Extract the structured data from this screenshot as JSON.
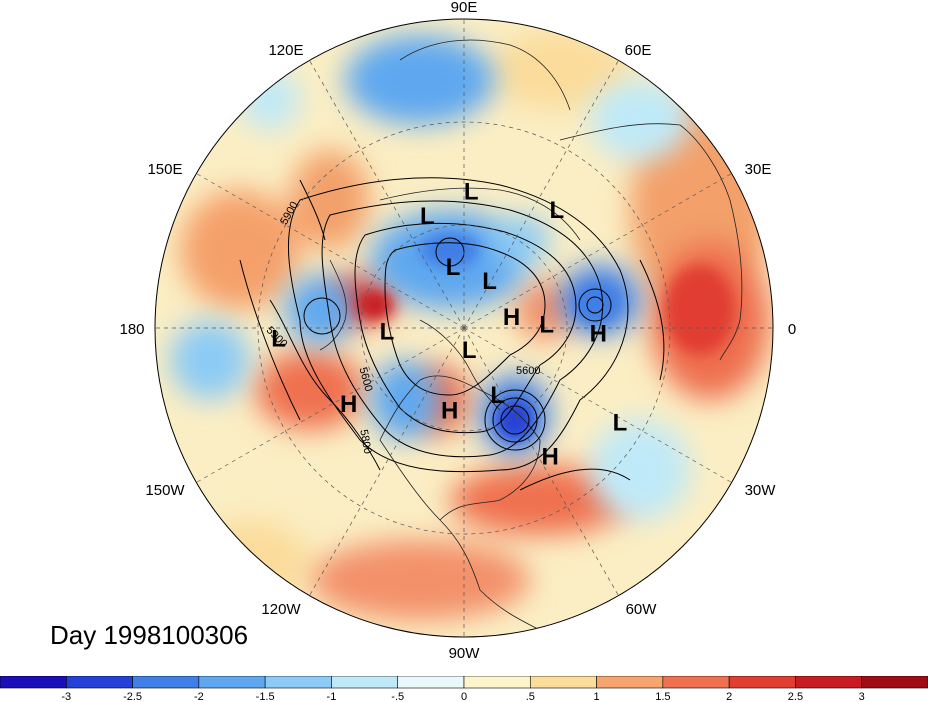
{
  "map": {
    "projection": "north-polar-stereographic",
    "day_label": "Day 1998100306",
    "longitude_labels": [
      "90E",
      "60E",
      "30E",
      "0",
      "30W",
      "60W",
      "90W",
      "120W",
      "150W",
      "180",
      "150E",
      "120E"
    ],
    "pressure_centers": [
      {
        "type": "L",
        "lon": 108,
        "lat": 48
      },
      {
        "type": "L",
        "lon": 87,
        "lat": 42
      },
      {
        "type": "L",
        "lon": 52,
        "lat": 38
      },
      {
        "type": "L",
        "lon": 100,
        "lat": 67
      },
      {
        "type": "L",
        "lon": 62,
        "lat": 70
      },
      {
        "type": "L",
        "lon": -76,
        "lat": 82
      },
      {
        "type": "H",
        "lon": 14,
        "lat": 72
      },
      {
        "type": "L",
        "lon": 3,
        "lat": 60
      },
      {
        "type": "H",
        "lon": -2,
        "lat": 43
      },
      {
        "type": "L",
        "lon": -178,
        "lat": 62
      },
      {
        "type": "L",
        "lon": -177,
        "lat": 28
      },
      {
        "type": "H",
        "lon": -147,
        "lat": 42
      },
      {
        "type": "L",
        "lon": -63,
        "lat": 63
      },
      {
        "type": "H",
        "lon": -100,
        "lat": 60
      },
      {
        "type": "H",
        "lon": -56,
        "lat": 37
      },
      {
        "type": "L",
        "lon": -31,
        "lat": 29
      }
    ],
    "contour_labels": [
      "5900",
      "5900",
      "5600",
      "5800",
      "5600"
    ],
    "colors": {
      "anomaly_scale": [
        "#1a0fb8",
        "#2540d8",
        "#3f7fe6",
        "#5fa8f0",
        "#8ccbf5",
        "#bfe9f8",
        "#e9f8fb",
        "#fdf4cc",
        "#fbdc9b",
        "#f7a56e",
        "#ef7150",
        "#e13e32",
        "#c81c22",
        "#a10b17"
      ]
    }
  },
  "colorbar": {
    "tick_labels": [
      "-3",
      "-2.5",
      "-2",
      "-1.5",
      "-1",
      "-.5",
      "0",
      ".5",
      "1",
      "1.5",
      "2",
      "2.5",
      "3"
    ],
    "colors": [
      "#1a0fb8",
      "#2540d8",
      "#3f7fe6",
      "#5fa8f0",
      "#8ccbf5",
      "#bfe9f8",
      "#e9f8fb",
      "#fdf4cc",
      "#fbdc9b",
      "#f7a56e",
      "#ef7150",
      "#e13e32",
      "#c81c22",
      "#a10b17"
    ]
  }
}
